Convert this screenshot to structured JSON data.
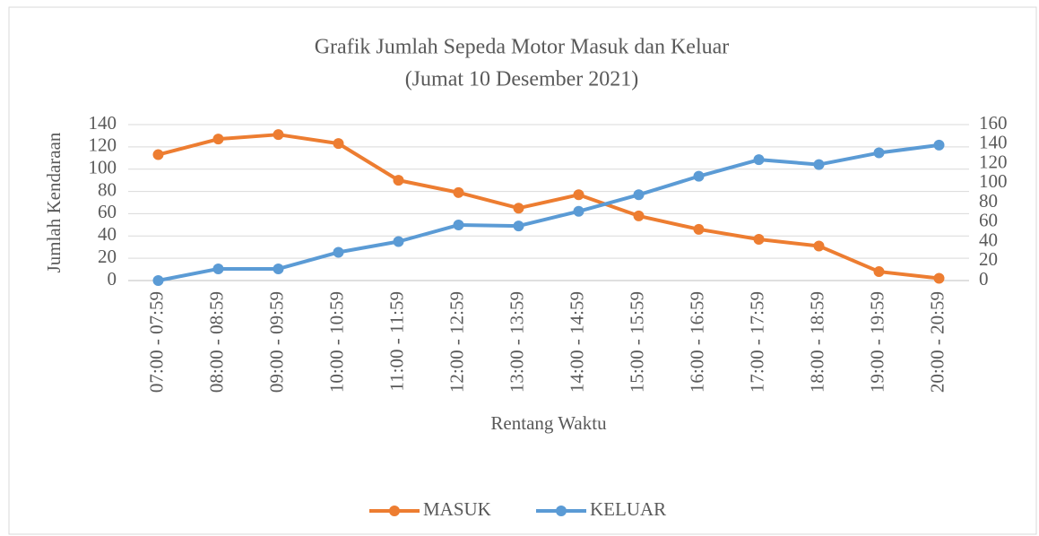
{
  "chart_data": {
    "type": "line",
    "title": "Grafik Jumlah Sepeda Motor Masuk dan Keluar",
    "subtitle": "(Jumat 10 Desember 2021)",
    "x_label": "Rentang Waktu",
    "y_label": "Jumlah Kendaraan",
    "categories": [
      "07:00 - 07:59",
      "08:00 - 08:59",
      "09:00 - 09:59",
      "10:00 - 10:59",
      "11:00 - 11:59",
      "12:00 - 12:59",
      "13:00 - 13:59",
      "14:00 - 14:59",
      "15:00 - 15:59",
      "16:00 - 16:59",
      "17:00 - 17:59",
      "18:00 - 18:59",
      "19:00 - 19:59",
      "20:00 - 20:59"
    ],
    "series": [
      {
        "name": "MASUK",
        "color": "#ed7d31",
        "values": [
          113,
          127,
          131,
          123,
          90,
          79,
          65,
          77,
          58,
          46,
          37,
          31,
          8,
          2
        ]
      },
      {
        "name": "KELUAR",
        "color": "#5b9bd5",
        "axis": "y2",
        "values": [
          0,
          12,
          12,
          29,
          40,
          57,
          56,
          71,
          88,
          107,
          124,
          119,
          131,
          139
        ]
      }
    ],
    "ylim": [
      0,
      140
    ],
    "yticks": [
      0,
      20,
      40,
      60,
      80,
      100,
      120,
      140
    ],
    "y2lim": [
      0,
      160
    ],
    "y2ticks": [
      0,
      20,
      40,
      60,
      80,
      100,
      120,
      140,
      160
    ],
    "grid": true,
    "legend": "bottom"
  }
}
